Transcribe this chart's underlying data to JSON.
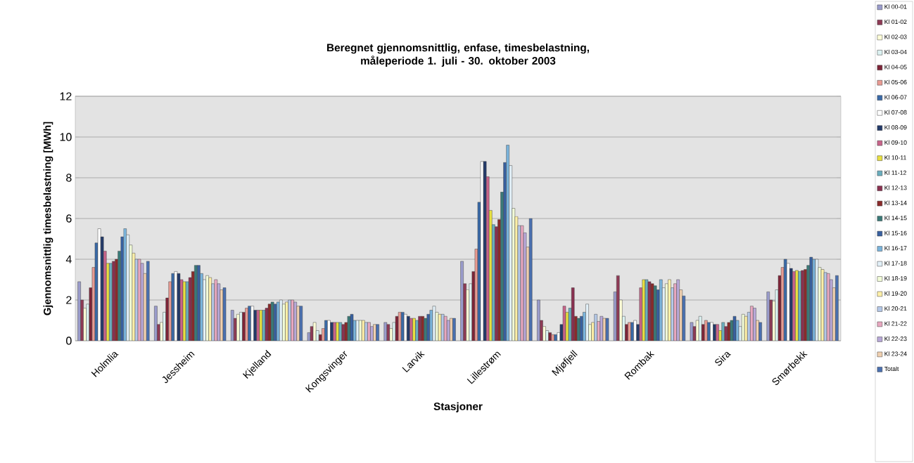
{
  "chart_data": {
    "type": "bar",
    "title": "Beregnet gjennomsnittlig, enfase, timesbelastning, måleperiode 1. juli - 30. oktober 2003",
    "xlabel": "Stasjoner",
    "ylabel": "Gjennomsnittlig timesbelastning [MWh]",
    "categories": [
      "Holmlia",
      "Jessheim",
      "Kjelland",
      "Kongsvinger",
      "Larvik",
      "Lillestrøm",
      "Mjøfjell",
      "Rombak",
      "Sira",
      "Smørbekk"
    ],
    "ylim": [
      0,
      12
    ],
    "yticks": [
      0,
      2,
      4,
      6,
      8,
      10,
      12
    ],
    "grid": "y",
    "legend": "right",
    "series": [
      {
        "name": "Kl 00-01",
        "color": "#9a9ccc",
        "values": [
          2.9,
          1.7,
          1.5,
          0.4,
          0.9,
          3.9,
          2.0,
          2.4,
          0.9,
          2.4
        ]
      },
      {
        "name": "Kl 01-02",
        "color": "#8e3a55",
        "values": [
          2.0,
          0.8,
          1.1,
          0.7,
          0.8,
          2.8,
          1.0,
          3.2,
          0.7,
          2.0
        ]
      },
      {
        "name": "Kl 02-03",
        "color": "#ffffd8",
        "values": [
          1.6,
          0.9,
          1.3,
          0.9,
          0.6,
          2.5,
          0.7,
          2.0,
          1.0,
          1.95
        ]
      },
      {
        "name": "Kl 03-04",
        "color": "#dcf2f2",
        "values": [
          1.8,
          1.4,
          1.4,
          0.5,
          0.9,
          2.8,
          0.5,
          1.2,
          1.2,
          2.5
        ]
      },
      {
        "name": "Kl 04-05",
        "color": "#7e2438",
        "values": [
          2.6,
          2.1,
          1.4,
          0.3,
          1.2,
          3.4,
          0.4,
          0.8,
          0.8,
          3.2
        ]
      },
      {
        "name": "Kl 05-06",
        "color": "#e89a92",
        "values": [
          3.6,
          2.9,
          1.6,
          0.6,
          1.4,
          4.5,
          0.3,
          0.9,
          1.0,
          3.6
        ]
      },
      {
        "name": "Kl 06-07",
        "color": "#3a6aa8",
        "values": [
          4.8,
          3.3,
          1.7,
          1.0,
          1.4,
          6.8,
          0.3,
          0.9,
          0.9,
          4.0
        ]
      },
      {
        "name": "Kl 07-08",
        "color": "#ffffff",
        "values": [
          5.5,
          3.4,
          1.7,
          1.0,
          1.3,
          8.8,
          0.4,
          1.0,
          0.9,
          3.8
        ]
      },
      {
        "name": "Kl 08-09",
        "color": "#233a6a",
        "values": [
          5.1,
          3.3,
          1.5,
          0.9,
          1.2,
          8.8,
          0.8,
          0.8,
          0.8,
          3.55
        ]
      },
      {
        "name": "Kl 09-10",
        "color": "#c8648a",
        "values": [
          4.4,
          3.0,
          1.5,
          0.9,
          1.1,
          8.05,
          1.7,
          2.6,
          0.8,
          3.4
        ]
      },
      {
        "name": "Kl 10-11",
        "color": "#e8e040",
        "values": [
          3.8,
          2.9,
          1.5,
          0.9,
          1.1,
          6.4,
          1.4,
          3.0,
          0.5,
          3.45
        ]
      },
      {
        "name": "Kl 11-12",
        "color": "#6aaebe",
        "values": [
          3.8,
          2.9,
          1.5,
          0.9,
          1.0,
          5.7,
          1.6,
          3.0,
          0.9,
          3.4
        ]
      },
      {
        "name": "Kl 12-13",
        "color": "#8a3050",
        "values": [
          3.9,
          3.1,
          1.6,
          0.8,
          1.2,
          5.6,
          2.6,
          2.9,
          0.7,
          3.45
        ]
      },
      {
        "name": "Kl 13-14",
        "color": "#8a2a2a",
        "values": [
          4.0,
          3.4,
          1.8,
          0.9,
          1.2,
          5.95,
          1.2,
          2.8,
          0.9,
          3.5
        ]
      },
      {
        "name": "Kl 14-15",
        "color": "#3a7a78",
        "values": [
          4.4,
          3.7,
          1.9,
          1.2,
          1.1,
          7.3,
          1.1,
          2.7,
          1.0,
          3.7
        ]
      },
      {
        "name": "Kl 15-16",
        "color": "#3860a0",
        "values": [
          5.1,
          3.7,
          1.8,
          1.3,
          1.3,
          8.75,
          1.2,
          2.5,
          1.2,
          4.1
        ]
      },
      {
        "name": "Kl 16-17",
        "color": "#7ab4dc",
        "values": [
          5.5,
          3.3,
          1.9,
          1.0,
          1.5,
          9.6,
          1.4,
          3.0,
          1.0,
          4.0
        ]
      },
      {
        "name": "Kl 17-18",
        "color": "#e2f0f8",
        "values": [
          5.2,
          3.0,
          2.0,
          1.0,
          1.7,
          8.6,
          1.8,
          2.6,
          0.7,
          4.0
        ]
      },
      {
        "name": "Kl 18-19",
        "color": "#f2fcd8",
        "values": [
          4.7,
          3.2,
          1.8,
          1.0,
          1.4,
          6.5,
          0.8,
          2.8,
          1.3,
          3.6
        ]
      },
      {
        "name": "Kl 19-20",
        "color": "#fff0a8",
        "values": [
          4.3,
          3.1,
          1.9,
          1.0,
          1.3,
          6.1,
          0.9,
          3.0,
          1.2,
          3.5
        ]
      },
      {
        "name": "Kl 20-21",
        "color": "#b4c8e8",
        "values": [
          4.0,
          2.8,
          2.0,
          0.9,
          1.3,
          5.65,
          1.3,
          2.6,
          1.4,
          3.35
        ]
      },
      {
        "name": "Kl 21-22",
        "color": "#e8a8c0",
        "values": [
          4.0,
          3.0,
          2.0,
          0.9,
          1.2,
          5.65,
          0.95,
          2.8,
          1.7,
          3.3
        ]
      },
      {
        "name": "Kl 22-23",
        "color": "#b8a8d8",
        "values": [
          3.8,
          2.8,
          1.9,
          0.7,
          1.0,
          5.3,
          1.2,
          3.0,
          1.6,
          3.0
        ]
      },
      {
        "name": "Kl 23-24",
        "color": "#f0d0b0",
        "values": [
          3.3,
          2.5,
          1.7,
          0.8,
          1.1,
          4.6,
          1.1,
          2.5,
          1.0,
          2.6
        ]
      },
      {
        "name": "Totalt",
        "color": "#4a70b0",
        "values": [
          3.9,
          2.6,
          1.7,
          0.8,
          1.1,
          6.0,
          1.1,
          2.2,
          0.9,
          3.2
        ]
      }
    ]
  }
}
